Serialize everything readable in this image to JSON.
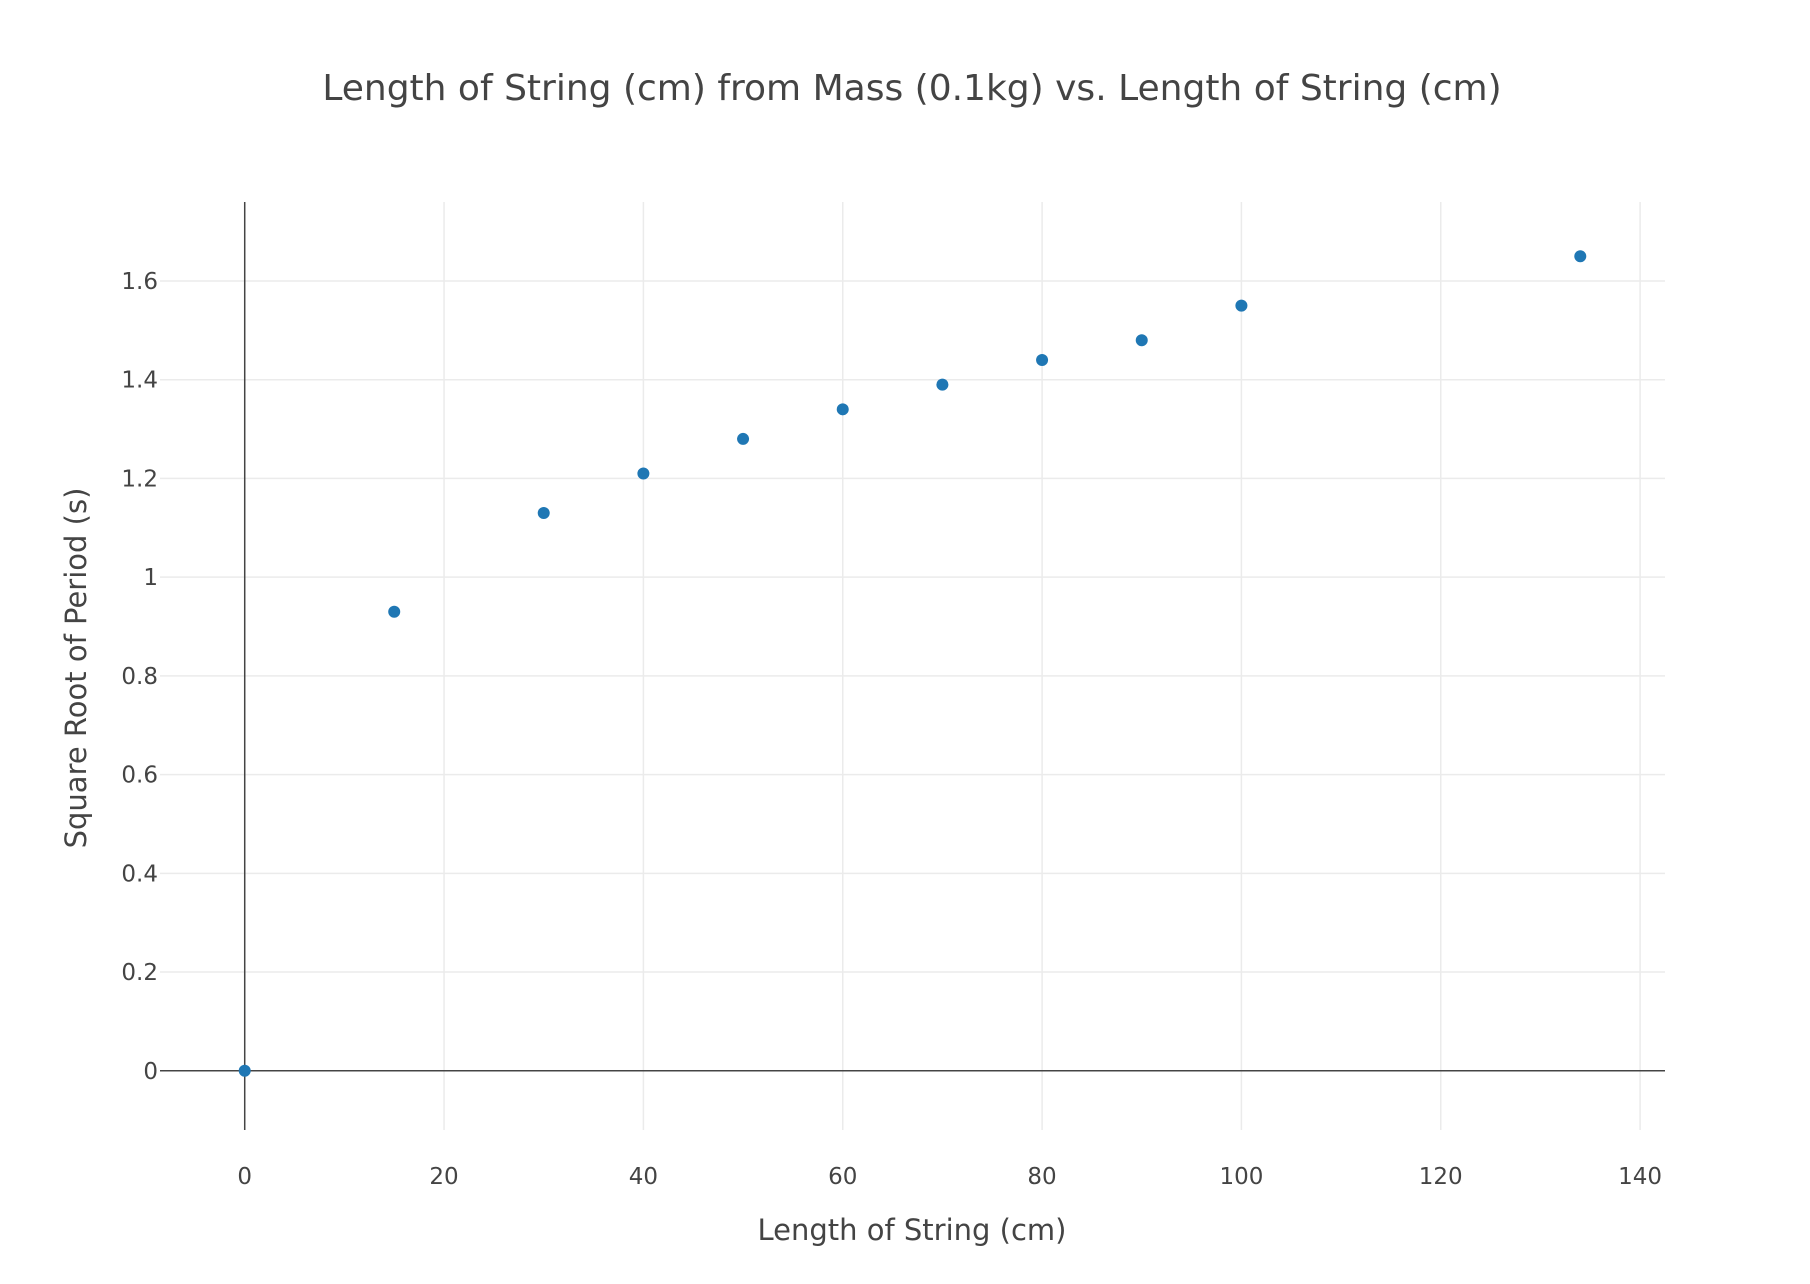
{
  "chart_data": {
    "type": "scatter",
    "title": "Length of String (cm) from Mass (0.1kg) vs. Length of String (cm)",
    "xlabel": "Length of String (cm)",
    "ylabel": "Square Root of Period (s)",
    "xlim": [
      -8.5,
      142.5
    ],
    "ylim": [
      -0.12,
      1.76
    ],
    "x_ticks": [
      0,
      20,
      40,
      60,
      80,
      100,
      120,
      140
    ],
    "x_tick_labels": [
      "0",
      "20",
      "40",
      "60",
      "80",
      "100",
      "120",
      "140"
    ],
    "y_ticks": [
      0,
      0.2,
      0.4,
      0.6,
      0.8,
      1,
      1.2,
      1.4,
      1.6
    ],
    "y_tick_labels": [
      "0",
      "0.2",
      "0.4",
      "0.6",
      "0.8",
      "1",
      "1.2",
      "1.4",
      "1.6"
    ],
    "grid": true,
    "legend": "none",
    "marker_color": "#1f77b4",
    "series": [
      {
        "x": [
          0,
          15,
          30,
          40,
          50,
          60,
          70,
          80,
          90,
          100,
          134
        ],
        "y": [
          0,
          0.93,
          1.13,
          1.21,
          1.28,
          1.34,
          1.39,
          1.44,
          1.48,
          1.55,
          1.65
        ]
      }
    ]
  }
}
